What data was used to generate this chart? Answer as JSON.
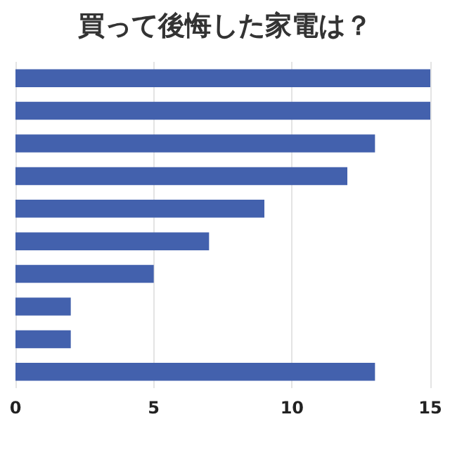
{
  "chart_data": {
    "type": "bar",
    "orientation": "horizontal",
    "title": "買って後悔した家電は？",
    "categories": [
      null,
      null,
      null,
      null,
      null,
      null,
      null,
      null,
      null,
      null
    ],
    "values": [
      15,
      15,
      13,
      12,
      9,
      7,
      5,
      2,
      2,
      13
    ],
    "color": "#4361ad",
    "xlim": [
      0,
      15
    ],
    "xticks": [
      0,
      5,
      10,
      15
    ],
    "grid": "x"
  }
}
